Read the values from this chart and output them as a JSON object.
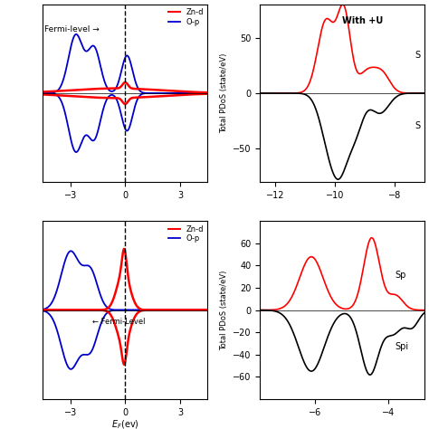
{
  "panel1": {
    "fermi_label": "Fermi-level →",
    "legend_znd": "Zn-d",
    "legend_op": "O-p",
    "xlim": [
      -4.5,
      4.5
    ],
    "ylim": [
      -1.3,
      1.3
    ],
    "xticks": [
      -3,
      0,
      3
    ],
    "yticks": []
  },
  "panel2": {
    "title": "With +U",
    "ylabel": "Total PDoS (state/eV)",
    "xlim": [
      -12.5,
      -7.0
    ],
    "ylim": [
      -80,
      80
    ],
    "xticks": [
      -12,
      -10,
      -8
    ],
    "yticks": [
      -50,
      0,
      50
    ],
    "spin_up_label": "S",
    "spin_dn_label": "S"
  },
  "panel3": {
    "fermi_label": "← Fermi-Level",
    "legend_znd": "Zn-d",
    "legend_op": "O-p",
    "xlim": [
      -4.5,
      4.5
    ],
    "ylim": [
      -1.3,
      1.3
    ],
    "xlabel": "E_F(ev)",
    "xticks": [
      -3,
      0,
      3
    ],
    "yticks": []
  },
  "panel4": {
    "ylabel": "Total PDoS (state/eV)",
    "xlim": [
      -7.5,
      -3.0
    ],
    "ylim": [
      -80,
      80
    ],
    "xticks": [
      -6,
      -4
    ],
    "yticks": [
      -60,
      -40,
      -20,
      0,
      20,
      40,
      60
    ],
    "spin_up_label": "Sp",
    "spin_dn_label": "Spi"
  },
  "colors": {
    "red": "#ff0000",
    "blue": "#0000cc",
    "black": "#000000",
    "bg": "#ffffff"
  }
}
